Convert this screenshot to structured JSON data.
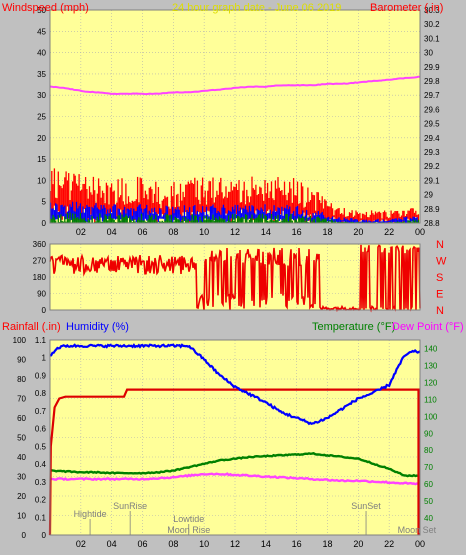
{
  "header": {
    "title": "24 hour graph date - June 06 2019",
    "left_axis_label": "Windspeed (mph)",
    "right_axis_label": "Barometer (.in)"
  },
  "colors": {
    "plot_bg": "#ffff99",
    "window_bg": "#c0c0c0",
    "grid": "#b0b0b0",
    "wind_gust": "#ff0000",
    "wind_avg": "#0000ff",
    "wind_low": "#008000",
    "barometer": "#ff44ff",
    "direction": "#ee0000",
    "humidity": "#0000ff",
    "temperature": "#008000",
    "dewpoint": "#ff44ff",
    "rainfall": "#dd0000",
    "title_color": "#dddd00",
    "left_label_red": "#ff0000",
    "humidity_label": "#0000ff",
    "temperature_label": "#008000",
    "dewpoint_label": "#ff00ff",
    "tick_text": "#000000",
    "right_tick_green": "#008000",
    "astro_label": "#808080"
  },
  "x_axis": {
    "ticks": [
      "02",
      "04",
      "06",
      "08",
      "10",
      "12",
      "14",
      "16",
      "18",
      "20",
      "22",
      "00"
    ]
  },
  "chart_data": [
    {
      "id": "wind-barometer",
      "type": "line",
      "title": "24 hour graph date - June 06 2019",
      "ylabel_left": "Windspeed (mph)",
      "ylabel_right": "Barometer (.in)",
      "xlim": [
        0,
        24
      ],
      "ylim_left": [
        0,
        50
      ],
      "ylim_right": [
        28.8,
        30.3
      ],
      "y_ticks_left": [
        "0",
        "5",
        "10",
        "15",
        "20",
        "25",
        "30",
        "35",
        "40",
        "45",
        "50"
      ],
      "y_ticks_right": [
        "28.8",
        "28.9",
        "29",
        "29.1",
        "29.2",
        "29.3",
        "29.4",
        "29.5",
        "29.6",
        "29.7",
        "29.8",
        "29.9",
        "30",
        "30.1",
        "30.2",
        "30.3"
      ],
      "wind_gust_envelope": {
        "x": [
          0,
          2,
          4,
          6,
          8,
          10,
          12,
          14,
          16,
          17,
          18,
          19,
          20,
          22,
          23,
          24
        ],
        "peak": [
          13,
          12,
          11,
          11,
          10,
          11,
          11,
          11,
          11,
          9,
          5,
          4,
          3,
          3,
          3,
          4
        ],
        "base": [
          6,
          5,
          4,
          4,
          3,
          4,
          4,
          4,
          4,
          3,
          2,
          1.5,
          1,
          1,
          1.5,
          2
        ]
      },
      "wind_avg_envelope": {
        "x": [
          0,
          2,
          4,
          6,
          8,
          10,
          12,
          14,
          16,
          17,
          18,
          19,
          20,
          22,
          23,
          24
        ],
        "peak": [
          5,
          5,
          4.5,
          4.5,
          4,
          4.5,
          4.5,
          4.5,
          4.5,
          4,
          2,
          1.5,
          1,
          1,
          1.5,
          2
        ],
        "base": [
          2,
          2,
          1.5,
          1.5,
          1.5,
          1.5,
          1.5,
          1.5,
          1.5,
          1,
          0.5,
          0.5,
          0.3,
          0.3,
          0.5,
          0.5
        ]
      },
      "wind_low_envelope": {
        "x": [
          0,
          2,
          4,
          6,
          8,
          10,
          12,
          14,
          16,
          17,
          18,
          19,
          20,
          22,
          23,
          24
        ],
        "peak": [
          2.5,
          2.5,
          2.2,
          2.2,
          2,
          2.2,
          2.2,
          2.2,
          2.2,
          2,
          1,
          0.5,
          0.3,
          0.3,
          0.5,
          1
        ],
        "base": [
          0,
          0,
          0,
          0,
          0,
          0,
          0,
          0,
          0,
          0,
          0,
          0,
          0,
          0,
          0,
          0
        ]
      },
      "barometer": {
        "x": [
          0,
          1,
          2,
          3,
          4,
          5,
          6,
          7,
          8,
          9,
          10,
          11,
          12,
          13,
          14,
          15,
          16,
          17,
          18,
          19,
          20,
          21,
          22,
          23,
          24
        ],
        "y": [
          29.76,
          29.75,
          29.73,
          29.72,
          29.71,
          29.71,
          29.71,
          29.71,
          29.72,
          29.72,
          29.73,
          29.74,
          29.75,
          29.76,
          29.76,
          29.77,
          29.77,
          29.77,
          29.78,
          29.78,
          29.79,
          29.8,
          29.81,
          29.82,
          29.83
        ]
      }
    },
    {
      "id": "wind-direction",
      "type": "scatter",
      "xlim": [
        0,
        24
      ],
      "ylim": [
        0,
        360
      ],
      "y_ticks": [
        "0",
        "90",
        "180",
        "270",
        "360"
      ],
      "right_labels": [
        "N",
        "W",
        "S",
        "E",
        "N"
      ],
      "segments": [
        {
          "x": [
            0,
            9.5
          ],
          "band": [
            195,
            300
          ],
          "mode": "noisy"
        },
        {
          "x": [
            9.5,
            17.5
          ],
          "band": [
            0,
            360
          ],
          "mode": "flip",
          "flip_low": [
            0,
            90
          ],
          "flip_high": [
            240,
            340
          ]
        },
        {
          "x": [
            17.5,
            20
          ],
          "band": [
            0,
            20
          ],
          "mode": "flat"
        },
        {
          "x": [
            20,
            24
          ],
          "band": [
            0,
            360
          ],
          "mode": "flip",
          "flip_low": [
            0,
            20
          ],
          "flip_high": [
            310,
            360
          ]
        }
      ]
    },
    {
      "id": "humidity-temperature",
      "type": "line",
      "ylabel_left_1": "Rainfall (.in)",
      "ylabel_left_2": "Humidity (%)",
      "ylabel_right_1": "Temperature (°F)",
      "ylabel_right_2": "Dew Point (°F)",
      "xlim": [
        0,
        24
      ],
      "ylim_humidity": [
        0,
        100
      ],
      "ylim_rain": [
        0,
        1.1
      ],
      "ylim_temp": [
        30,
        145
      ],
      "y_ticks_humidity": [
        "0",
        "10",
        "20",
        "30",
        "40",
        "50",
        "60",
        "70",
        "80",
        "90",
        "100"
      ],
      "y_ticks_rain": [
        "0",
        "0.1",
        "0.2",
        "0.3",
        "0.4",
        "0.5",
        "0.6",
        "0.7",
        "0.8",
        "0.9",
        "1",
        "1.1"
      ],
      "y_ticks_temp": [
        "40",
        "50",
        "60",
        "70",
        "80",
        "90",
        "100",
        "110",
        "120",
        "130",
        "140"
      ],
      "humidity": {
        "x": [
          0,
          0.5,
          1,
          2,
          4,
          6,
          8,
          9,
          10,
          11,
          12,
          13,
          14,
          15,
          16,
          17,
          18,
          19,
          20,
          21,
          22,
          22.5,
          23,
          23.5,
          24
        ],
        "y": [
          92,
          96,
          97,
          97,
          97,
          97,
          97,
          97,
          90,
          82,
          76,
          72,
          68,
          63,
          60,
          57,
          60,
          65,
          70,
          73,
          77,
          85,
          92,
          94,
          94
        ]
      },
      "temperature": {
        "x": [
          0,
          1,
          2,
          3,
          4,
          5,
          6,
          7,
          8,
          9,
          10,
          11,
          12,
          13,
          14,
          15,
          16,
          17,
          18,
          19,
          20,
          21,
          22,
          23,
          24
        ],
        "y": [
          68,
          67.5,
          67,
          67,
          66.5,
          66.5,
          66.5,
          67,
          68,
          70,
          72,
          74,
          75,
          76,
          76.5,
          77,
          77.5,
          78,
          77,
          76,
          75,
          72,
          69,
          65,
          65
        ]
      },
      "dewpoint": {
        "x": [
          0,
          1,
          2,
          3,
          4,
          5,
          6,
          7,
          8,
          9,
          10,
          11,
          12,
          13,
          14,
          15,
          16,
          17,
          18,
          19,
          20,
          21,
          22,
          23,
          24
        ],
        "y": [
          63,
          63,
          63,
          63,
          63,
          63,
          63,
          63.5,
          64,
          65,
          66,
          66,
          65.5,
          65,
          64.5,
          64,
          63.5,
          63,
          62.5,
          62,
          62,
          61.5,
          61,
          60.5,
          60
        ]
      },
      "rainfall": {
        "x": [
          0,
          0.05,
          0.3,
          0.6,
          1.0,
          1.5,
          2.5,
          4.8,
          5.0,
          23.9,
          23.9
        ],
        "y": [
          0,
          0.5,
          0.72,
          0.77,
          0.78,
          0.78,
          0.78,
          0.78,
          0.82,
          0.82,
          0
        ]
      },
      "events": [
        {
          "label": "Hightide",
          "x": 2.6,
          "row": 0
        },
        {
          "label": "SunRise",
          "x": 5.2,
          "row": 1
        },
        {
          "label": "Lowtide",
          "x": 9.0,
          "row": 2
        },
        {
          "label": "Moon Rise",
          "x": 9.0,
          "row": 3
        },
        {
          "label": "SunSet",
          "x": 20.5,
          "row": 1
        },
        {
          "label": "Moon Set",
          "x": 23.8,
          "row": 3
        }
      ]
    }
  ]
}
